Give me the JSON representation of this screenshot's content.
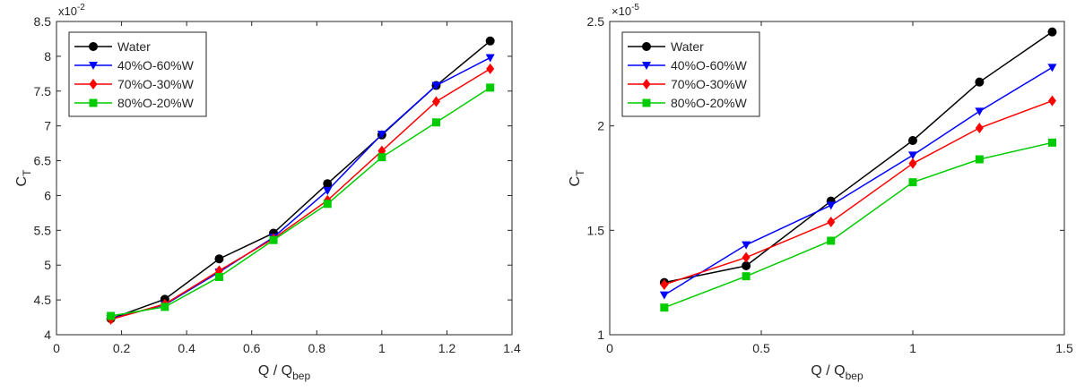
{
  "chart_data": [
    {
      "type": "line",
      "xlabel": "Q / Q",
      "xlabel_sub": "bep",
      "ylabel": "C",
      "ylabel_sub": "T",
      "exponent": "x10",
      "exponent_power": "-2",
      "xlim": [
        0,
        1.4
      ],
      "ylim": [
        4,
        8.5
      ],
      "xticks": [
        "0",
        "0.2",
        "0.4",
        "0.6",
        "0.8",
        "1",
        "1.2",
        "1.4"
      ],
      "yticks": [
        "4",
        "4.5",
        "5",
        "5.5",
        "6",
        "6.5",
        "7",
        "7.5",
        "8",
        "8.5"
      ],
      "grid": false,
      "legend_position": "top-left",
      "x": [
        0.167,
        0.333,
        0.5,
        0.667,
        0.833,
        1.0,
        1.167,
        1.333
      ],
      "series": [
        {
          "name": "Water",
          "color": "#000000",
          "marker": "circle",
          "values": [
            4.23,
            4.51,
            5.09,
            5.46,
            6.17,
            6.87,
            7.58,
            8.22
          ]
        },
        {
          "name": "40%O-60%W",
          "color": "#0000ff",
          "marker": "triangle-down",
          "values": [
            4.23,
            4.43,
            4.9,
            5.4,
            6.07,
            6.88,
            7.58,
            7.98
          ]
        },
        {
          "name": "70%O-30%W",
          "color": "#ff0000",
          "marker": "diamond",
          "values": [
            4.22,
            4.44,
            4.92,
            5.38,
            5.93,
            6.64,
            7.35,
            7.82
          ]
        },
        {
          "name": "80%O-20%W",
          "color": "#00cc00",
          "marker": "square",
          "values": [
            4.27,
            4.4,
            4.83,
            5.36,
            5.88,
            6.55,
            7.05,
            7.55
          ]
        }
      ]
    },
    {
      "type": "line",
      "xlabel": "Q / Q",
      "xlabel_sub": "bep",
      "ylabel": "C",
      "ylabel_sub": "T",
      "exponent": "×10",
      "exponent_power": "-5",
      "xlim": [
        0,
        1.5
      ],
      "ylim": [
        1,
        2.5
      ],
      "xticks": [
        "0",
        "0.5",
        "1",
        "1.5"
      ],
      "yticks": [
        "1",
        "1.5",
        "2",
        "2.5"
      ],
      "grid": false,
      "legend_position": "top-left",
      "x": [
        0.18,
        0.45,
        0.73,
        1.0,
        1.22,
        1.46
      ],
      "series": [
        {
          "name": "Water",
          "color": "#000000",
          "marker": "circle",
          "values": [
            1.25,
            1.33,
            1.64,
            1.93,
            2.21,
            2.45
          ]
        },
        {
          "name": "40%O-60%W",
          "color": "#0000ff",
          "marker": "triangle-down",
          "values": [
            1.19,
            1.43,
            1.62,
            1.86,
            2.07,
            2.28
          ]
        },
        {
          "name": "70%O-30%W",
          "color": "#ff0000",
          "marker": "diamond",
          "values": [
            1.24,
            1.37,
            1.54,
            1.82,
            1.99,
            2.12
          ]
        },
        {
          "name": "80%O-20%W",
          "color": "#00cc00",
          "marker": "square",
          "values": [
            1.13,
            1.28,
            1.45,
            1.73,
            1.84,
            1.92
          ]
        }
      ]
    }
  ]
}
